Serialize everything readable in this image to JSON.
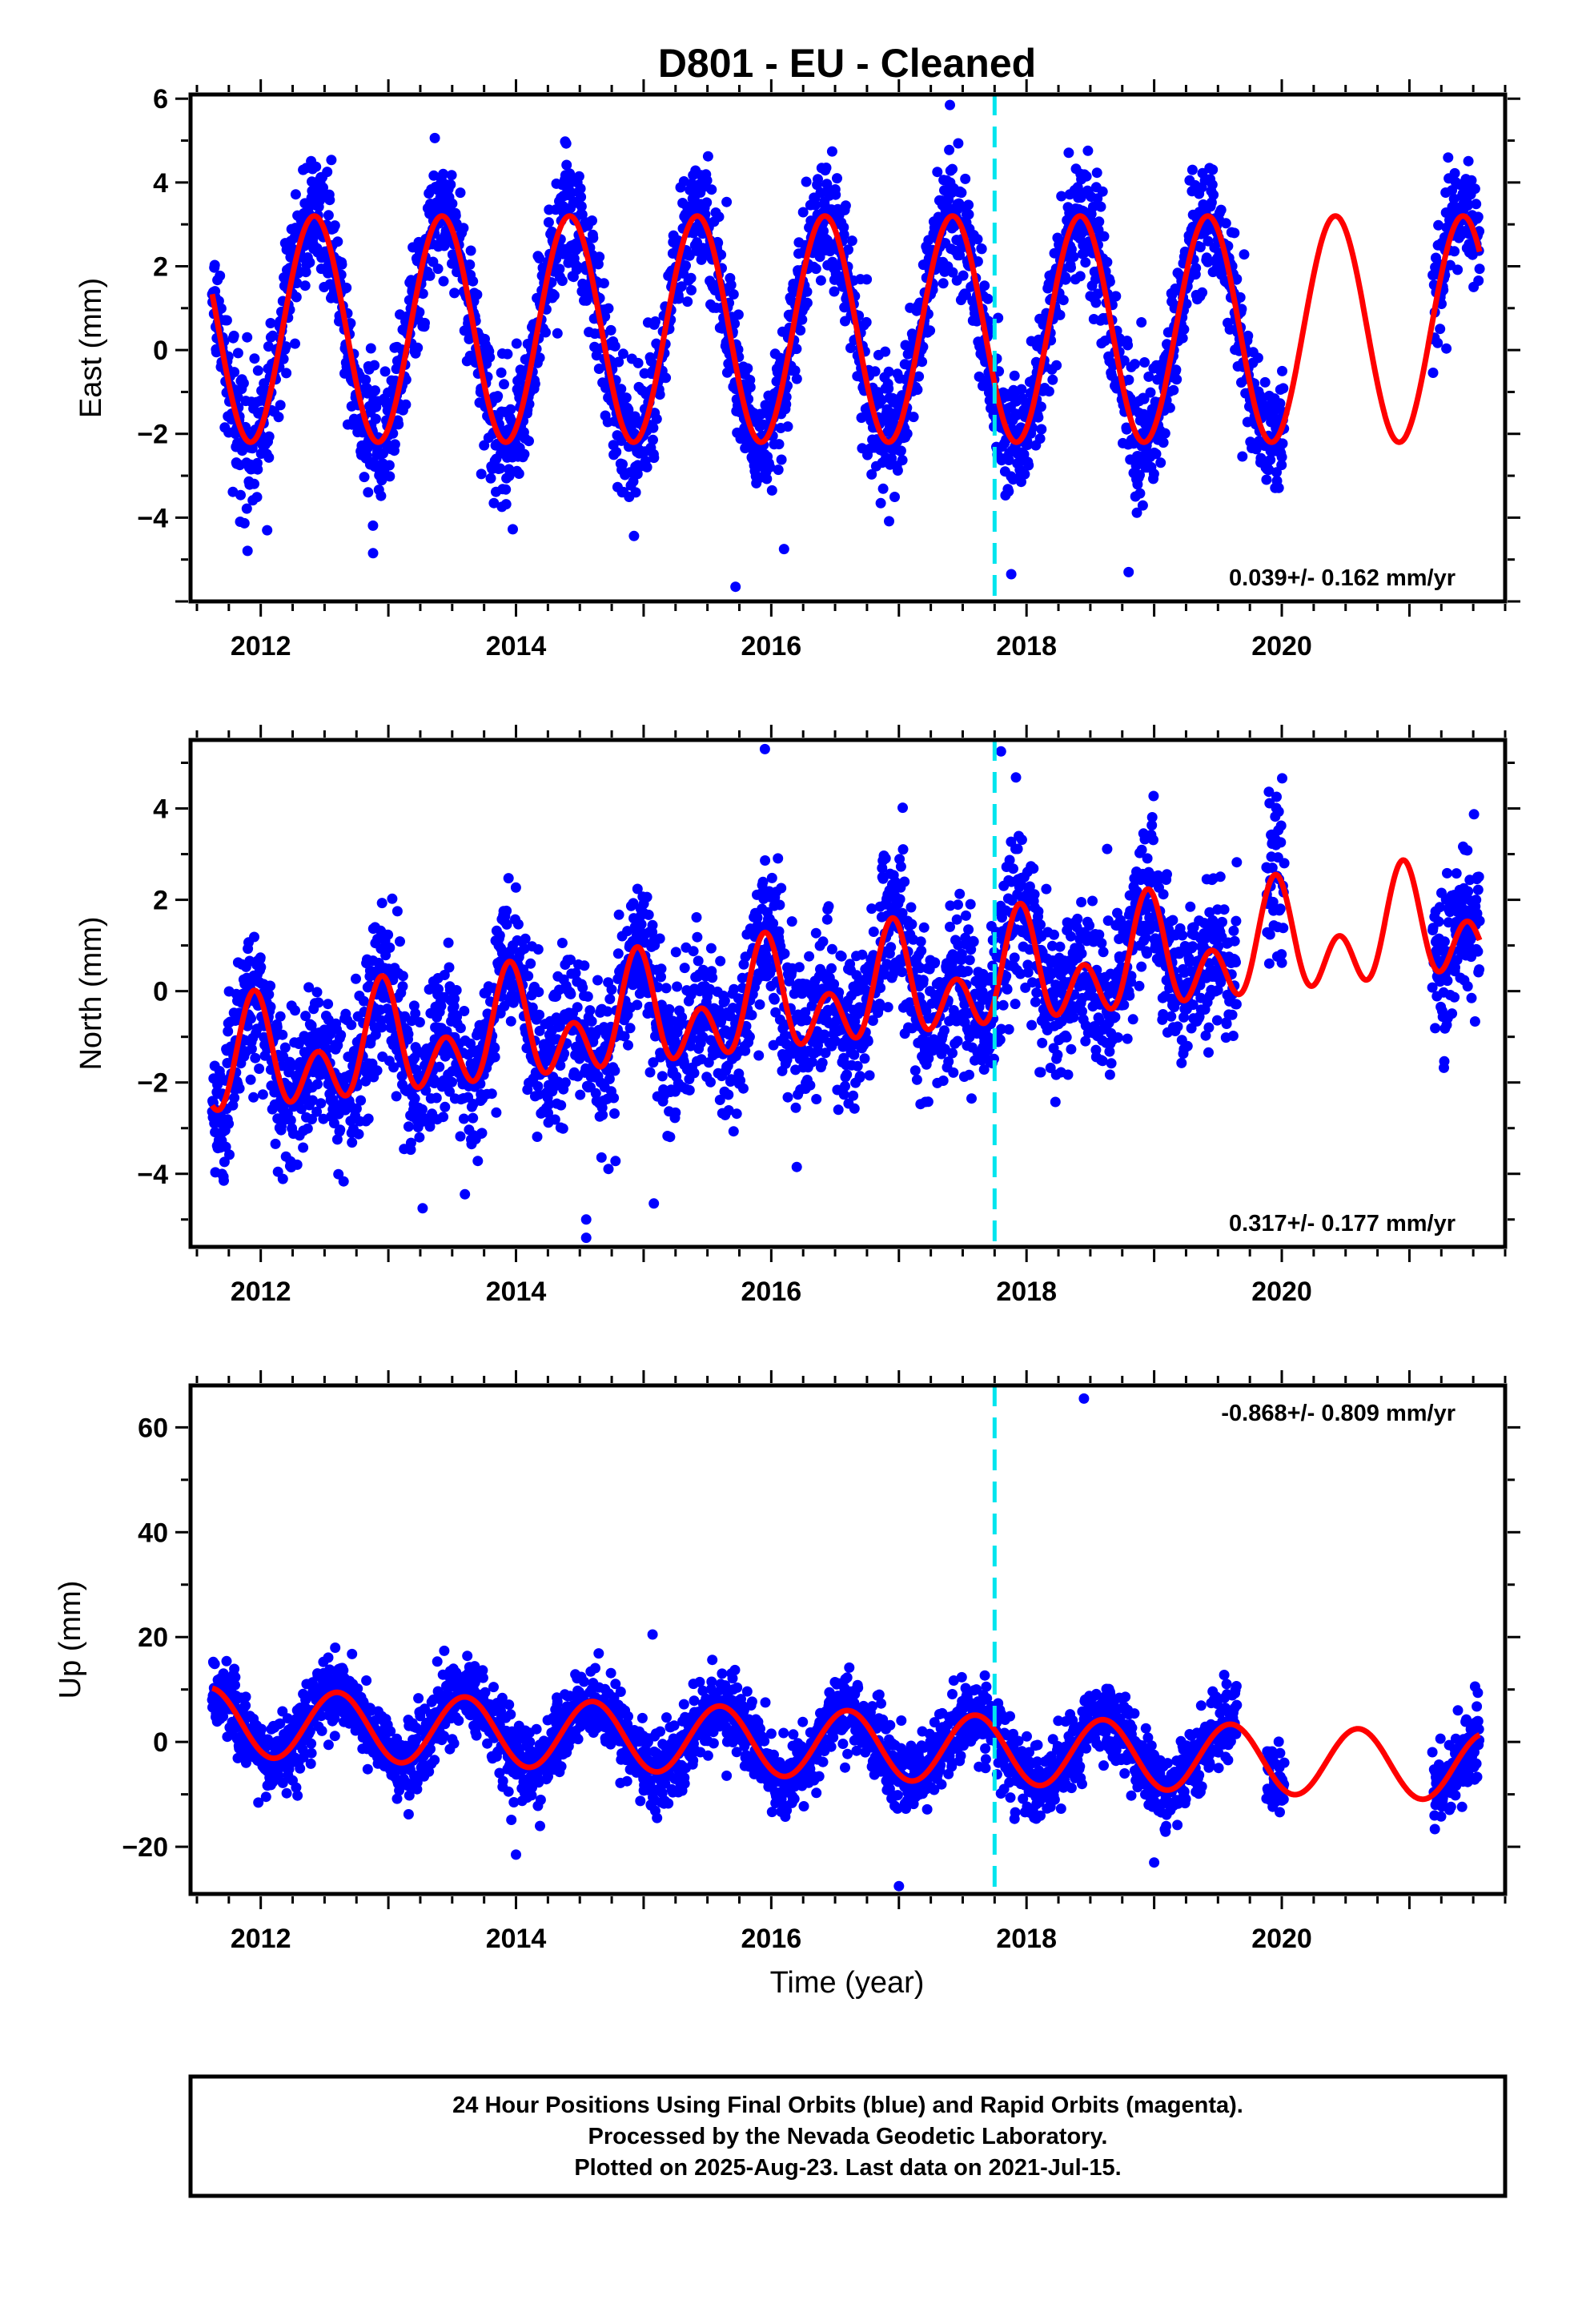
{
  "title": "D801  - EU - Cleaned",
  "xlabel": "Time (year)",
  "colors": {
    "points": "#0000ff",
    "model": "#ff0000",
    "event": "#00e5ee",
    "frame": "#000000"
  },
  "footer": {
    "lines": [
      "24 Hour Positions Using Final Orbits (blue) and Rapid Orbits (magenta).",
      "Processed by the Nevada Geodetic Laboratory.",
      "Plotted on 2025-Aug-23. Last data on 2021-Jul-15."
    ]
  },
  "chart_data": [
    {
      "type": "scatter",
      "component": "east",
      "ylabel": "East (mm)",
      "xlim": [
        2011.45,
        2021.75
      ],
      "ylim": [
        -6.0,
        6.1
      ],
      "xticks": [
        2012,
        2014,
        2016,
        2018,
        2020
      ],
      "yticks": [
        -4,
        -2,
        0,
        2,
        4,
        6
      ],
      "rate_text": "0.039+/- 0.162 mm/yr",
      "event_year": 2017.75,
      "model": {
        "mean": 0.5,
        "trend": 0.0,
        "t0": 2016.0,
        "annual_amp": 2.7,
        "annual_phase_year": 2012.42,
        "semi_amp": 0.0,
        "semi_phase_year": 2012.0
      },
      "data_segments": [
        [
          2011.62,
          2019.88
        ],
        [
          2019.88,
          2020.02
        ],
        [
          2021.18,
          2021.55
        ]
      ],
      "noise_sd": 0.75,
      "outliers": [
        [
          2012.05,
          -4.3
        ],
        [
          2012.88,
          -4.85
        ],
        [
          2015.72,
          -5.65
        ],
        [
          2016.1,
          -4.75
        ],
        [
          2017.88,
          -5.35
        ],
        [
          2018.8,
          -5.3
        ],
        [
          2017.4,
          5.85
        ]
      ],
      "grid": false
    },
    {
      "type": "scatter",
      "component": "north",
      "ylabel": "North (mm)",
      "xlim": [
        2011.45,
        2021.75
      ],
      "ylim": [
        -5.6,
        5.5
      ],
      "xticks": [
        2012,
        2014,
        2016,
        2018,
        2020
      ],
      "yticks": [
        -4,
        -2,
        0,
        2,
        4
      ],
      "rate_text": "0.317+/- 0.177 mm/yr",
      "event_year": 2017.75,
      "model": {
        "mean": -0.3,
        "trend": 0.317,
        "t0": 2016.0,
        "annual_amp": 0.75,
        "annual_phase_year": 2011.95,
        "semi_amp": 0.85,
        "semi_phase_year": 2011.95
      },
      "data_segments": [
        [
          2011.62,
          2019.65
        ],
        [
          2019.88,
          2020.02
        ],
        [
          2021.18,
          2021.55
        ]
      ],
      "noise_sd": 0.85,
      "outliers": [
        [
          2014.55,
          -5.4
        ],
        [
          2014.55,
          -5.0
        ],
        [
          2015.08,
          -4.65
        ],
        [
          2016.2,
          -3.85
        ],
        [
          2015.95,
          5.3
        ],
        [
          2017.8,
          5.25
        ]
      ],
      "grid": false
    },
    {
      "type": "scatter",
      "component": "up",
      "ylabel": "Up (mm)",
      "xlim": [
        2011.45,
        2021.75
      ],
      "ylim": [
        -29,
        68
      ],
      "xticks": [
        2012,
        2014,
        2016,
        2018,
        2020
      ],
      "yticks": [
        -20,
        0,
        20,
        40,
        60
      ],
      "rate_text": "-0.868+/- 0.809 mm/yr",
      "event_year": 2017.75,
      "model": {
        "mean": 0.0,
        "trend": -0.868,
        "t0": 2016.0,
        "annual_amp": 6.5,
        "annual_phase_year": 2012.6,
        "semi_amp": 0.0,
        "semi_phase_year": 2012.0
      },
      "data_segments": [
        [
          2011.62,
          2019.65
        ],
        [
          2019.88,
          2020.02
        ],
        [
          2021.18,
          2021.55
        ]
      ],
      "noise_sd": 3.6,
      "outliers": [
        [
          2018.45,
          65.5
        ],
        [
          2017.0,
          -27.5
        ],
        [
          2014.0,
          -21.5
        ],
        [
          2015.07,
          20.5
        ],
        [
          2019.0,
          -23.0
        ]
      ],
      "grid": false
    }
  ]
}
